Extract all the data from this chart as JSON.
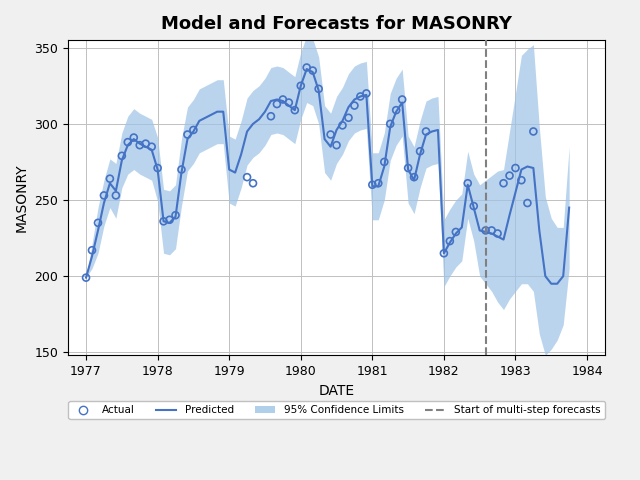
{
  "title": "Model and Forecasts for MASONRY",
  "xlabel": "DATE",
  "ylabel": "MASONRY",
  "xlim": [
    1976.75,
    1984.25
  ],
  "ylim": [
    148,
    355
  ],
  "yticks": [
    150,
    200,
    250,
    300,
    350
  ],
  "xticks": [
    1977,
    1978,
    1979,
    1980,
    1981,
    1982,
    1983,
    1984
  ],
  "vline_x": 1982.583,
  "actual_x": [
    1977.0,
    1977.083,
    1977.167,
    1977.25,
    1977.333,
    1977.417,
    1977.5,
    1977.583,
    1977.667,
    1977.75,
    1977.833,
    1977.917,
    1978.0,
    1978.083,
    1978.167,
    1978.25,
    1978.333,
    1978.417,
    1978.5,
    1979.25,
    1979.333,
    1979.583,
    1979.667,
    1979.75,
    1979.833,
    1979.917,
    1980.0,
    1980.083,
    1980.167,
    1980.25,
    1980.417,
    1980.5,
    1980.583,
    1980.667,
    1980.75,
    1980.833,
    1980.917,
    1981.0,
    1981.083,
    1981.167,
    1981.25,
    1981.333,
    1981.417,
    1981.5,
    1981.583,
    1981.667,
    1981.75,
    1982.0,
    1982.083,
    1982.167,
    1982.333,
    1982.417,
    1982.583,
    1982.667,
    1982.75,
    1982.833,
    1982.917,
    1983.0,
    1983.083,
    1983.167,
    1983.25
  ],
  "actual_y": [
    199,
    217,
    235,
    253,
    264,
    253,
    279,
    288,
    291,
    286,
    287,
    285,
    271,
    236,
    237,
    240,
    270,
    293,
    296,
    265,
    261,
    305,
    313,
    316,
    314,
    309,
    325,
    337,
    335,
    323,
    293,
    286,
    299,
    304,
    312,
    318,
    320,
    260,
    261,
    275,
    300,
    309,
    316,
    271,
    265,
    282,
    295,
    215,
    223,
    229,
    261,
    246,
    230,
    230,
    228,
    261,
    266,
    271,
    263,
    248,
    295
  ],
  "predicted_x": [
    1977.0,
    1977.083,
    1977.167,
    1977.25,
    1977.333,
    1977.417,
    1977.5,
    1977.583,
    1977.667,
    1977.75,
    1977.833,
    1977.917,
    1978.0,
    1978.083,
    1978.167,
    1978.25,
    1978.333,
    1978.417,
    1978.5,
    1978.583,
    1978.667,
    1978.75,
    1978.833,
    1978.917,
    1979.0,
    1979.083,
    1979.167,
    1979.25,
    1979.333,
    1979.417,
    1979.5,
    1979.583,
    1979.667,
    1979.75,
    1979.833,
    1979.917,
    1980.0,
    1980.083,
    1980.167,
    1980.25,
    1980.333,
    1980.417,
    1980.5,
    1980.583,
    1980.667,
    1980.75,
    1980.833,
    1980.917,
    1981.0,
    1981.083,
    1981.167,
    1981.25,
    1981.333,
    1981.417,
    1981.5,
    1981.583,
    1981.667,
    1981.75,
    1981.833,
    1981.917,
    1982.0,
    1982.083,
    1982.167,
    1982.25,
    1982.333,
    1982.417,
    1982.5,
    1982.583,
    1982.667,
    1982.75,
    1982.833,
    1982.917,
    1983.0,
    1983.083,
    1983.167,
    1983.25,
    1983.333,
    1983.417,
    1983.5,
    1983.583,
    1983.667,
    1983.75
  ],
  "predicted_y": [
    199,
    213,
    230,
    248,
    261,
    256,
    276,
    286,
    290,
    287,
    285,
    283,
    270,
    236,
    235,
    239,
    268,
    290,
    295,
    302,
    304,
    306,
    308,
    308,
    270,
    268,
    280,
    295,
    300,
    303,
    308,
    315,
    316,
    315,
    312,
    309,
    325,
    336,
    334,
    322,
    290,
    285,
    296,
    302,
    311,
    316,
    318,
    319,
    259,
    259,
    272,
    298,
    308,
    314,
    270,
    263,
    280,
    293,
    295,
    296,
    215,
    222,
    228,
    232,
    260,
    245,
    230,
    229,
    228,
    226,
    224,
    240,
    255,
    270,
    272,
    271,
    230,
    200,
    195,
    195,
    200,
    245
  ],
  "ci_x": [
    1977.0,
    1977.083,
    1977.167,
    1977.25,
    1977.333,
    1977.417,
    1977.5,
    1977.583,
    1977.667,
    1977.75,
    1977.833,
    1977.917,
    1978.0,
    1978.083,
    1978.167,
    1978.25,
    1978.333,
    1978.417,
    1978.5,
    1978.583,
    1978.667,
    1978.75,
    1978.833,
    1978.917,
    1979.0,
    1979.083,
    1979.167,
    1979.25,
    1979.333,
    1979.417,
    1979.5,
    1979.583,
    1979.667,
    1979.75,
    1979.833,
    1979.917,
    1980.0,
    1980.083,
    1980.167,
    1980.25,
    1980.333,
    1980.417,
    1980.5,
    1980.583,
    1980.667,
    1980.75,
    1980.833,
    1980.917,
    1981.0,
    1981.083,
    1981.167,
    1981.25,
    1981.333,
    1981.417,
    1981.5,
    1981.583,
    1981.667,
    1981.75,
    1981.833,
    1981.917,
    1982.0,
    1982.083,
    1982.167,
    1982.25,
    1982.333,
    1982.417,
    1982.5,
    1982.583,
    1982.667,
    1982.75,
    1982.833,
    1982.917,
    1983.0,
    1983.083,
    1983.167,
    1983.25,
    1983.333,
    1983.417,
    1983.5,
    1983.583,
    1983.667,
    1983.75
  ],
  "ci_lower": [
    199,
    205,
    215,
    233,
    245,
    238,
    258,
    267,
    270,
    267,
    265,
    263,
    249,
    215,
    214,
    218,
    246,
    269,
    274,
    281,
    283,
    285,
    287,
    287,
    248,
    246,
    258,
    273,
    278,
    281,
    286,
    293,
    294,
    293,
    290,
    287,
    303,
    314,
    312,
    300,
    268,
    263,
    274,
    280,
    289,
    294,
    296,
    297,
    237,
    237,
    250,
    276,
    286,
    292,
    248,
    241,
    258,
    271,
    273,
    274,
    193,
    200,
    206,
    210,
    238,
    223,
    200,
    195,
    190,
    183,
    178,
    185,
    190,
    195,
    195,
    190,
    162,
    148,
    152,
    158,
    168,
    205
  ],
  "ci_upper": [
    199,
    221,
    245,
    263,
    277,
    274,
    294,
    305,
    310,
    307,
    305,
    303,
    291,
    257,
    256,
    260,
    290,
    311,
    316,
    323,
    325,
    327,
    329,
    329,
    292,
    290,
    302,
    317,
    322,
    325,
    330,
    337,
    338,
    337,
    334,
    331,
    347,
    358,
    356,
    344,
    312,
    307,
    318,
    324,
    333,
    338,
    340,
    341,
    281,
    281,
    294,
    320,
    330,
    336,
    292,
    285,
    302,
    315,
    317,
    318,
    237,
    244,
    250,
    254,
    282,
    267,
    260,
    263,
    266,
    269,
    270,
    295,
    320,
    345,
    349,
    352,
    298,
    252,
    238,
    232,
    232,
    285
  ],
  "line_color": "#4472C4",
  "ci_color": "#9DC3E6",
  "actual_color": "#4472C4",
  "vline_color": "#808080",
  "bg_color": "#F0F0F0",
  "plot_bg_color": "#FFFFFF"
}
